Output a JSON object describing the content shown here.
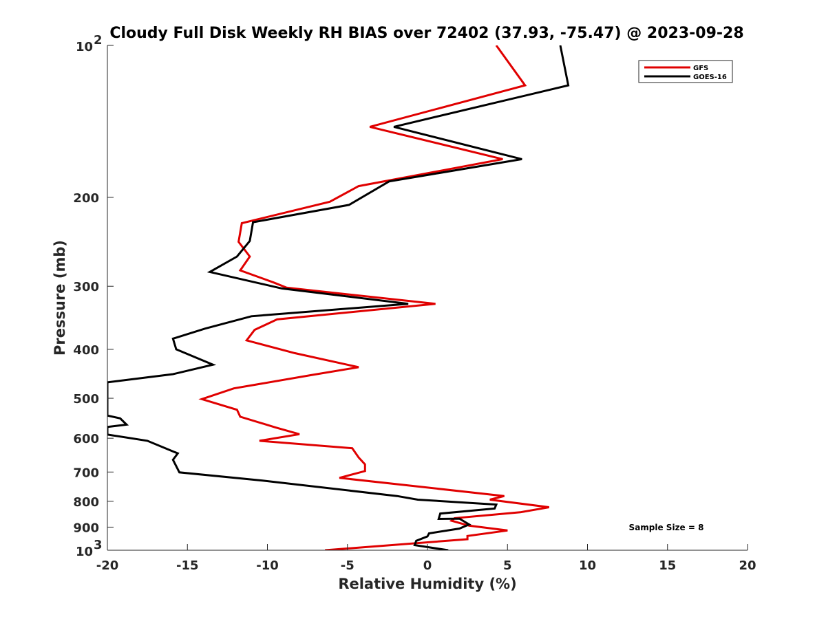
{
  "chart_data": {
    "type": "line",
    "title": "Cloudy Full Disk Weekly RH BIAS over 72402 (37.93, -75.47) @ 2023-09-28",
    "xlabel": "Relative Humidity (%)",
    "ylabel": "Pressure (mb)",
    "xlim": [
      -20,
      20
    ],
    "ylim": [
      100,
      1000
    ],
    "yscale": "log",
    "y_reversed": true,
    "grid": false,
    "legend_position": "top-right",
    "xticks": [
      -20,
      -15,
      -10,
      -5,
      0,
      5,
      10,
      15,
      20
    ],
    "yticks": [
      {
        "value": 100,
        "base": "10",
        "exp": "2"
      },
      {
        "value": 200,
        "label": "200"
      },
      {
        "value": 300,
        "label": "300"
      },
      {
        "value": 400,
        "label": "400"
      },
      {
        "value": 500,
        "label": "500"
      },
      {
        "value": 600,
        "label": "600"
      },
      {
        "value": 700,
        "label": "700"
      },
      {
        "value": 800,
        "label": "800"
      },
      {
        "value": 900,
        "label": "900"
      },
      {
        "value": 1000,
        "base": "10",
        "exp": "3"
      }
    ],
    "annotation": "Sample Size = 8",
    "series": [
      {
        "name": "GFS",
        "color": "#e00000",
        "points": [
          [
            4.3,
            100
          ],
          [
            6.1,
            120
          ],
          [
            -3.6,
            145
          ],
          [
            4.7,
            168
          ],
          [
            -4.3,
            190
          ],
          [
            -6.1,
            204
          ],
          [
            -11.6,
            225
          ],
          [
            -11.8,
            245
          ],
          [
            -11.1,
            262
          ],
          [
            -11.7,
            279
          ],
          [
            -9.6,
            295
          ],
          [
            -8.8,
            302
          ],
          [
            0.5,
            325
          ],
          [
            -9.4,
            349
          ],
          [
            -10.8,
            366
          ],
          [
            -11.3,
            384
          ],
          [
            -8.3,
            407
          ],
          [
            -4.3,
            434
          ],
          [
            -7.3,
            450
          ],
          [
            -12.1,
            478
          ],
          [
            -14.1,
            502
          ],
          [
            -11.9,
            527
          ],
          [
            -11.7,
            544
          ],
          [
            -9.5,
            571
          ],
          [
            -8.0,
            589
          ],
          [
            -10.5,
            607
          ],
          [
            -4.7,
            628
          ],
          [
            -4.3,
            655
          ],
          [
            -3.9,
            676
          ],
          [
            -3.9,
            697
          ],
          [
            -5.5,
            719
          ],
          [
            4.8,
            781
          ],
          [
            3.9,
            794
          ],
          [
            7.6,
            822
          ],
          [
            5.8,
            841
          ],
          [
            1.7,
            864
          ],
          [
            1.5,
            874
          ],
          [
            2.6,
            894
          ],
          [
            5.0,
            914
          ],
          [
            2.5,
            937
          ],
          [
            2.5,
            951
          ],
          [
            -6.4,
            1000
          ]
        ]
      },
      {
        "name": "GOES-16",
        "color": "#000000",
        "points": [
          [
            8.3,
            100
          ],
          [
            8.8,
            120
          ],
          [
            -2.1,
            145
          ],
          [
            5.9,
            168
          ],
          [
            -2.4,
            186
          ],
          [
            -4.9,
            207
          ],
          [
            -10.9,
            224
          ],
          [
            -11.1,
            244
          ],
          [
            -11.9,
            262
          ],
          [
            -13.6,
            281
          ],
          [
            -9.1,
            303
          ],
          [
            -1.2,
            325
          ],
          [
            -11.0,
            344
          ],
          [
            -13.9,
            364
          ],
          [
            -15.9,
            381
          ],
          [
            -15.7,
            400
          ],
          [
            -13.4,
            429
          ],
          [
            -15.9,
            448
          ],
          [
            -20.0,
            465
          ],
          [
            -20.0,
            541
          ],
          [
            -19.2,
            548
          ],
          [
            -18.8,
            564
          ],
          [
            -20.0,
            570
          ],
          [
            -20.0,
            590
          ],
          [
            -17.5,
            607
          ],
          [
            -15.6,
            643
          ],
          [
            -15.9,
            662
          ],
          [
            -15.5,
            701
          ],
          [
            -10.3,
            728
          ],
          [
            -1.9,
            781
          ],
          [
            -0.6,
            794
          ],
          [
            4.3,
            812
          ],
          [
            4.2,
            827
          ],
          [
            0.8,
            846
          ],
          [
            0.7,
            867
          ],
          [
            2.0,
            866
          ],
          [
            2.6,
            889
          ],
          [
            2.0,
            906
          ],
          [
            0.1,
            926
          ],
          [
            0.0,
            939
          ],
          [
            -0.7,
            958
          ],
          [
            -0.8,
            977
          ],
          [
            1.3,
            1000
          ]
        ]
      }
    ]
  }
}
